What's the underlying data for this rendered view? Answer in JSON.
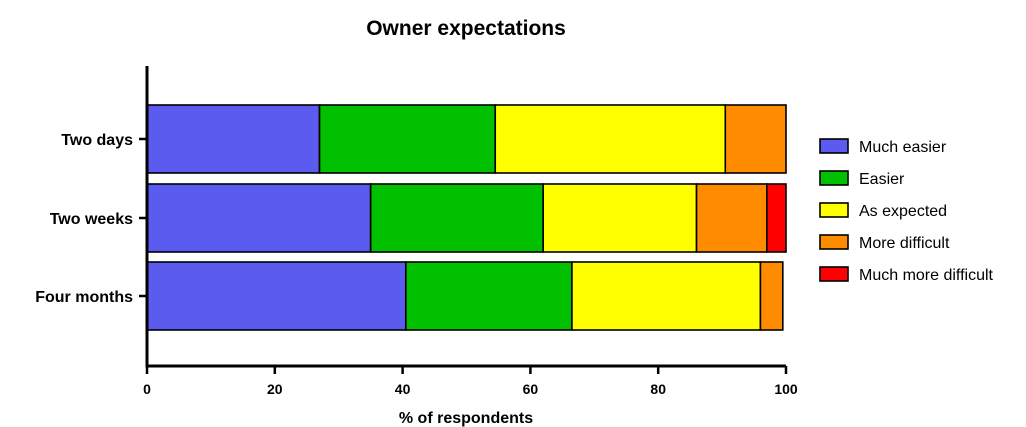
{
  "chart_data": {
    "type": "bar",
    "orientation": "horizontal",
    "stacked": true,
    "title": "Owner expectations",
    "xlabel": "% of respondents",
    "ylabel": "",
    "xlim": [
      0,
      100
    ],
    "xticks": [
      0,
      20,
      40,
      60,
      80,
      100
    ],
    "categories": [
      "Two days",
      "Two weeks",
      "Four months"
    ],
    "series": [
      {
        "name": "Much easier",
        "color": "#5b5bf0",
        "values": [
          27,
          35,
          40.5
        ]
      },
      {
        "name": "Easier",
        "color": "#00c000",
        "values": [
          27.5,
          27,
          26
        ]
      },
      {
        "name": "As expected",
        "color": "#ffff00",
        "values": [
          36,
          24,
          29.5
        ]
      },
      {
        "name": "More difficult",
        "color": "#ff8c00",
        "values": [
          9.5,
          11,
          3.5
        ]
      },
      {
        "name": "Much more difficult",
        "color": "#ff0000",
        "values": [
          0,
          3,
          0
        ]
      }
    ],
    "legend_position": "right",
    "grid": false
  }
}
